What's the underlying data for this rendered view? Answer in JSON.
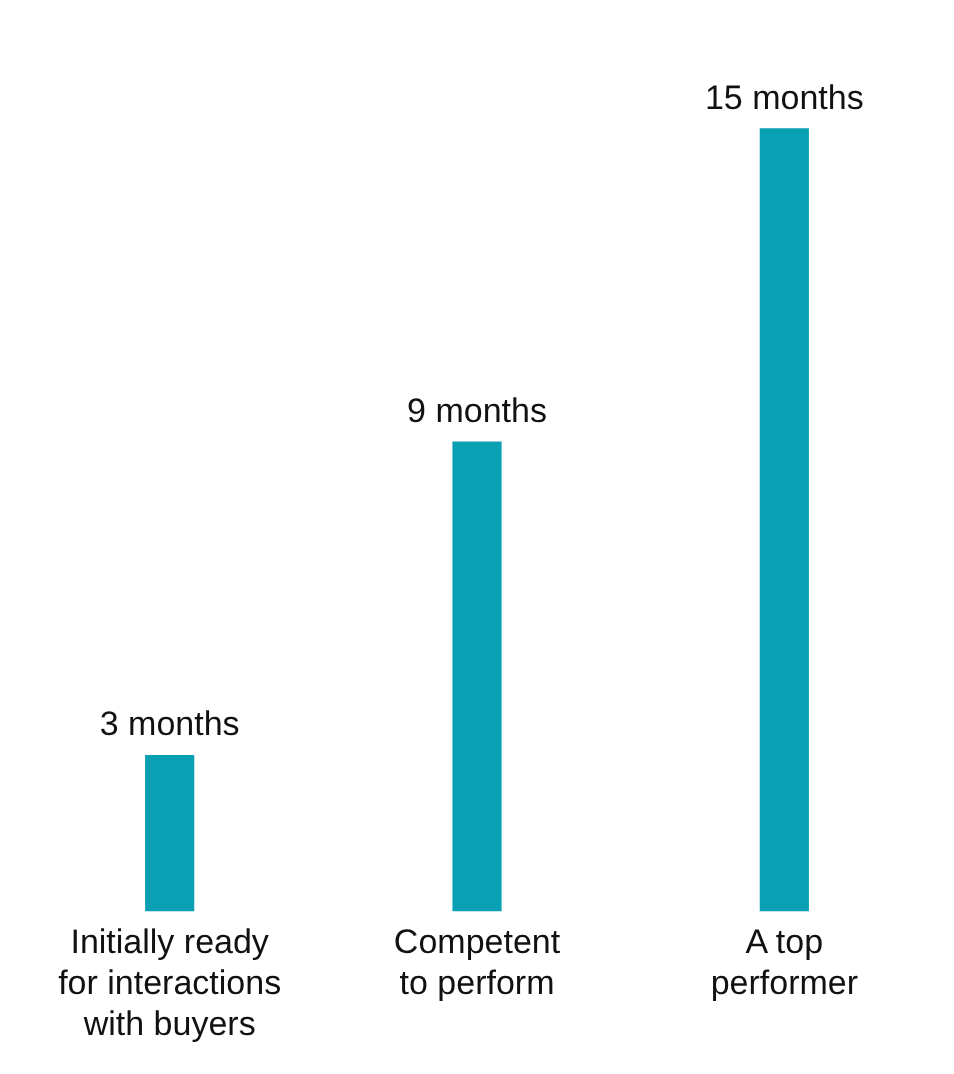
{
  "chart_data": {
    "type": "bar",
    "categories": [
      "Initially ready\nfor interactions\nwith buyers",
      "Competent\nto perform",
      "A top\nperformer"
    ],
    "values": [
      3,
      9,
      15
    ],
    "color": "#0aa0b4",
    "value_labels": [
      "3 months",
      "9 months",
      "15 months"
    ],
    "grid": false,
    "legend": false
  }
}
